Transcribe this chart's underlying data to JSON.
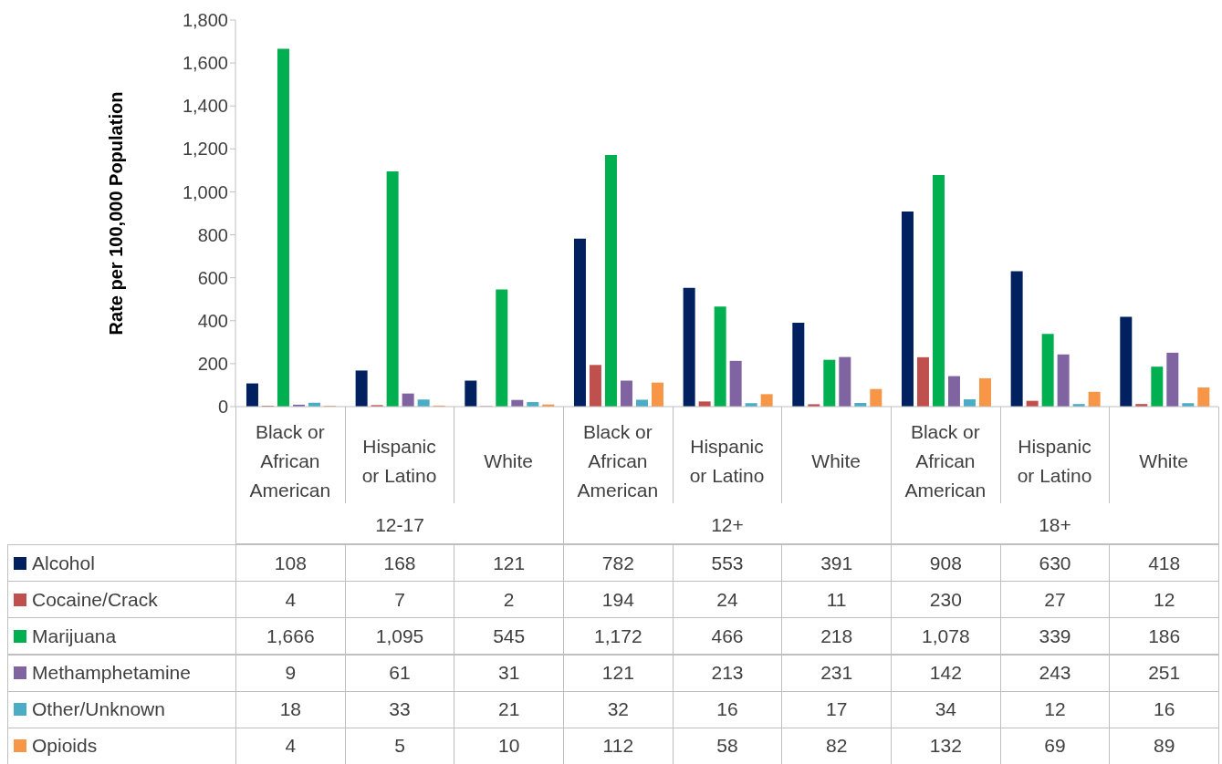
{
  "chart_data": {
    "type": "bar",
    "ylabel": "Rate per 100,000 Population",
    "categories": [
      "Black or African American",
      "Hispanic or Latino",
      "White",
      "Black or African American",
      "Hispanic or Latino",
      "White",
      "Black or African American",
      "Hispanic or Latino",
      "White"
    ],
    "annotations": [
      "12-17",
      "12+",
      "18+"
    ],
    "series": [
      {
        "name": "Alcohol",
        "color": "#002060",
        "values": [
          108,
          168,
          121,
          782,
          553,
          391,
          908,
          630,
          418
        ],
        "value_labels": [
          "108",
          "168",
          "121",
          "782",
          "553",
          "391",
          "908",
          "630",
          "418"
        ]
      },
      {
        "name": "Cocaine/Crack",
        "color": "#c0504d",
        "values": [
          4,
          7,
          2,
          194,
          24,
          11,
          230,
          27,
          12
        ],
        "value_labels": [
          "4",
          "7",
          "2",
          "194",
          "24",
          "11",
          "230",
          "27",
          "12"
        ]
      },
      {
        "name": "Marijuana",
        "color": "#00b050",
        "values": [
          1666,
          1095,
          545,
          1172,
          466,
          218,
          1078,
          339,
          186
        ],
        "value_labels": [
          "1,666",
          "1,095",
          "545",
          "1,172",
          "466",
          "218",
          "1,078",
          "339",
          "186"
        ]
      },
      {
        "name": "Methamphetamine",
        "color": "#8064a2",
        "values": [
          9,
          61,
          31,
          121,
          213,
          231,
          142,
          243,
          251
        ],
        "value_labels": [
          "9",
          "61",
          "31",
          "121",
          "213",
          "231",
          "142",
          "243",
          "251"
        ]
      },
      {
        "name": "Other/Unknown",
        "color": "#4bacc6",
        "values": [
          18,
          33,
          21,
          32,
          16,
          17,
          34,
          12,
          16
        ],
        "value_labels": [
          "18",
          "33",
          "21",
          "32",
          "16",
          "17",
          "34",
          "12",
          "16"
        ]
      },
      {
        "name": "Opioids",
        "color": "#f79646",
        "values": [
          4,
          5,
          10,
          112,
          58,
          82,
          132,
          69,
          89
        ],
        "value_labels": [
          "4",
          "5",
          "10",
          "112",
          "58",
          "82",
          "132",
          "69",
          "89"
        ]
      }
    ],
    "ylim": [
      0,
      1800
    ],
    "yticks": [
      0,
      200,
      400,
      600,
      800,
      {
        "value": 1000,
        "label": "1,000"
      },
      {
        "value": 1200,
        "label": "1,200"
      },
      {
        "value": 1400,
        "label": "1,400"
      },
      {
        "value": 1600,
        "label": "1,600"
      },
      {
        "value": 1800,
        "label": "1,800"
      }
    ],
    "legend": "bottom"
  }
}
